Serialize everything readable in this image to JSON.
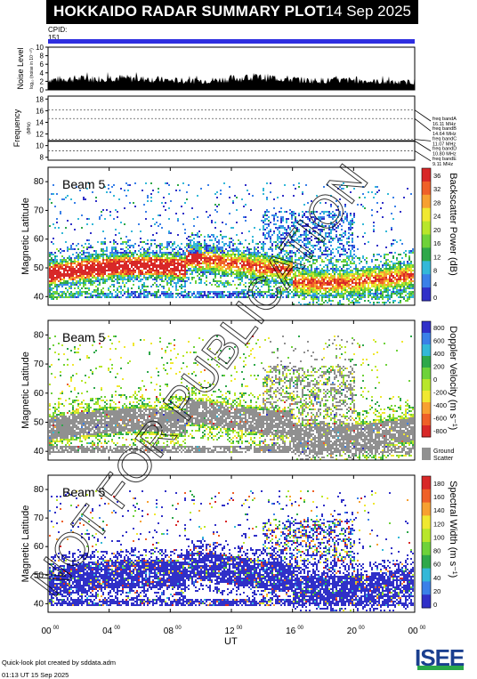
{
  "header": {
    "title": "HOKKAIDO RADAR SUMMARY PLOT",
    "date": "14 Sep 2025"
  },
  "cpid": {
    "label": "CPID:",
    "value": "151"
  },
  "watermark": "NOT FOR PUBLICATION",
  "footer": {
    "credit": "Quick-look plot created by sddata.adm",
    "timestamp": "01:13 UT 15 Sep 2025"
  },
  "logo": {
    "text": "ISEE"
  },
  "colors": {
    "beam_bar": "#2e2ee0",
    "ground_scatter": "#909090"
  },
  "chart_data": [
    {
      "type": "line",
      "name": "noise",
      "ylabel": "Noise Level",
      "ylabel_sub": "log₁₀ (noise in 10⁻¹⁰)",
      "ylim": [
        0,
        10
      ],
      "yticks": [
        0,
        2,
        4,
        6,
        8,
        10
      ],
      "xlim": [
        0,
        24
      ],
      "x_hours": [
        0,
        1,
        2,
        3,
        4,
        5,
        6,
        7,
        8,
        9,
        10,
        11,
        12,
        13,
        14,
        15,
        16,
        17,
        18,
        19,
        20,
        21,
        22,
        23,
        24
      ],
      "values": [
        2.8,
        3.0,
        3.1,
        3.0,
        3.4,
        3.2,
        3.0,
        2.9,
        2.6,
        2.5,
        2.5,
        2.7,
        3.1,
        3.3,
        3.4,
        3.3,
        2.9,
        2.6,
        2.6,
        2.6,
        2.7,
        2.4,
        2.2,
        2.0,
        2.2
      ]
    },
    {
      "type": "line",
      "name": "frequency",
      "ylabel": "Frequency",
      "ylabel_sub": "(MHz)",
      "ylim": [
        7.5,
        18.5
      ],
      "yticks": [
        8,
        10,
        12,
        14,
        16,
        18
      ],
      "bands": [
        {
          "label": "freq bandA",
          "mhz_text": "16.11 MHz",
          "value": 16.11
        },
        {
          "label": "freq bandB",
          "mhz_text": "14.64 MHz",
          "value": 14.64
        },
        {
          "label": "freq bandC",
          "mhz_text": "11.07 MHz",
          "value": 11.07
        },
        {
          "label": "freq bandD",
          "mhz_text": "10.80 MHz",
          "value": 10.8
        },
        {
          "label": "freq bandE",
          "mhz_text": "9.11 MHz",
          "value": 9.11
        }
      ],
      "operating_mhz": 10.8
    },
    {
      "type": "heatmap",
      "beam_label": "Beam  5",
      "ylabel": "Magnetic Latitude",
      "ylim": [
        37,
        85
      ],
      "yticks": [
        40,
        50,
        60,
        70,
        80
      ],
      "colorbar": {
        "label": "Backscatter Power (dB)",
        "ticks": [
          0,
          4,
          8,
          12,
          16,
          20,
          24,
          28,
          32,
          36
        ],
        "colors": [
          "#3030c8",
          "#3a80e8",
          "#33b8d8",
          "#2ea84a",
          "#6ed23a",
          "#b8e62a",
          "#f0e830",
          "#f7a030",
          "#ef6028",
          "#d82828"
        ]
      }
    },
    {
      "type": "heatmap",
      "beam_label": "Beam  5",
      "ylabel": "Magnetic Latitude",
      "ylim": [
        37,
        85
      ],
      "yticks": [
        40,
        50,
        60,
        70,
        80
      ],
      "colorbar": {
        "label": "Doppler Velocity (m s⁻¹)",
        "ticks": [
          800,
          600,
          400,
          200,
          0,
          -200,
          -400,
          -600,
          -800
        ],
        "colors": [
          "#3030c8",
          "#3a80e8",
          "#33b8d8",
          "#2ea84a",
          "#6ed23a",
          "#b8e62a",
          "#f0e830",
          "#f7a030",
          "#ef6028",
          "#d82828"
        ],
        "extra_label": "Ground Scatter"
      }
    },
    {
      "type": "heatmap",
      "beam_label": "Beam  5",
      "ylabel": "Magnetic Latitude",
      "ylim": [
        37,
        85
      ],
      "yticks": [
        40,
        50,
        60,
        70,
        80
      ],
      "colorbar": {
        "label": "Spectral Width (m s⁻¹)",
        "ticks": [
          0,
          20,
          40,
          60,
          80,
          100,
          120,
          140,
          160,
          180
        ],
        "colors": [
          "#3030c8",
          "#3a80e8",
          "#33b8d8",
          "#2ea84a",
          "#6ed23a",
          "#b8e62a",
          "#f0e830",
          "#f7a030",
          "#ef6028",
          "#d82828"
        ]
      }
    }
  ],
  "xaxis": {
    "label": "UT",
    "ticks": [
      {
        "hour": 0,
        "text": "00",
        "sup": "00"
      },
      {
        "hour": 4,
        "text": "04",
        "sup": "00"
      },
      {
        "hour": 8,
        "text": "08",
        "sup": "00"
      },
      {
        "hour": 12,
        "text": "12",
        "sup": "00"
      },
      {
        "hour": 16,
        "text": "16",
        "sup": "00"
      },
      {
        "hour": 20,
        "text": "20",
        "sup": "00"
      },
      {
        "hour": 24,
        "text": "00",
        "sup": "00"
      }
    ]
  }
}
